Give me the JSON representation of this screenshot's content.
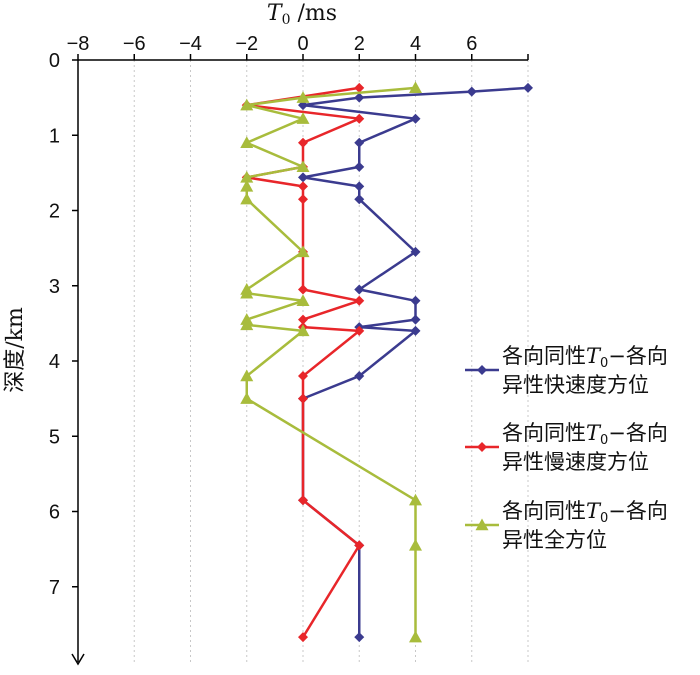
{
  "chart_data": {
    "type": "line",
    "title": "",
    "xlabel_var": "T",
    "xlabel_sub": "0",
    "xlabel_unit": " /ms",
    "ylabel": "深度/km",
    "x_axis_position": "top",
    "y_inverted": true,
    "xlim": [
      -8,
      8
    ],
    "ylim": [
      0,
      8
    ],
    "xticks": [
      -8,
      -6,
      -4,
      -2,
      0,
      2,
      4,
      6
    ],
    "xtick_labels": [
      "−8",
      "−6",
      "−4",
      "−2",
      "0",
      "2",
      "4",
      "6"
    ],
    "yticks": [
      0,
      1,
      2,
      3,
      4,
      5,
      6,
      7
    ],
    "ytick_labels": [
      "0",
      "1",
      "2",
      "3",
      "4",
      "5",
      "6",
      "7"
    ],
    "grid": "vertical dotted",
    "legend_position": "right",
    "series": [
      {
        "name": "各向同性T0−各向异性快速度方位",
        "legend_line1_pre": "各向同性",
        "legend_line1_var": "T",
        "legend_line1_sub": "0",
        "legend_line1_post": "−各向",
        "legend_line2": "异性快速度方位",
        "color": "#3b3b8f",
        "marker": "diamond",
        "points": [
          [
            8.0,
            0.37
          ],
          [
            6.0,
            0.42
          ],
          [
            2.0,
            0.5
          ],
          [
            0.0,
            0.6
          ],
          [
            4.0,
            0.78
          ],
          [
            2.0,
            1.1
          ],
          [
            2.0,
            1.42
          ],
          [
            0.0,
            1.56
          ],
          [
            2.0,
            1.68
          ],
          [
            2.0,
            1.85
          ],
          [
            4.0,
            2.55
          ],
          [
            2.0,
            3.05
          ],
          [
            4.0,
            3.2
          ],
          [
            4.0,
            3.45
          ],
          [
            2.0,
            3.55
          ],
          [
            4.0,
            3.6
          ],
          [
            2.0,
            4.2
          ],
          [
            0.0,
            4.5
          ],
          [
            0.0,
            5.85
          ],
          [
            2.0,
            6.45
          ],
          [
            2.0,
            7.67
          ]
        ]
      },
      {
        "name": "各向同性T0−各向异性慢速度方位",
        "legend_line1_pre": "各向同性",
        "legend_line1_var": "T",
        "legend_line1_sub": "0",
        "legend_line1_post": "−各向",
        "legend_line2": "异性慢速度方位",
        "color": "#e8262a",
        "marker": "diamond",
        "points": [
          [
            2.0,
            0.37
          ],
          [
            -2.0,
            0.6
          ],
          [
            2.0,
            0.78
          ],
          [
            0.0,
            1.1
          ],
          [
            0.0,
            1.42
          ],
          [
            -2.0,
            1.56
          ],
          [
            0.0,
            1.68
          ],
          [
            0.0,
            1.85
          ],
          [
            0.0,
            2.55
          ],
          [
            0.0,
            3.05
          ],
          [
            2.0,
            3.2
          ],
          [
            0.0,
            3.45
          ],
          [
            0.0,
            3.55
          ],
          [
            2.0,
            3.6
          ],
          [
            0.0,
            4.2
          ],
          [
            0.0,
            4.5
          ],
          [
            0.0,
            5.85
          ],
          [
            2.0,
            6.45
          ],
          [
            0.0,
            7.67
          ]
        ]
      },
      {
        "name": "各向同性T0−各向异性全方位",
        "legend_line1_pre": "各向同性",
        "legend_line1_var": "T",
        "legend_line1_sub": "0",
        "legend_line1_post": "−各向",
        "legend_line2": "异性全方位",
        "color": "#a8bc3c",
        "marker": "triangle",
        "points": [
          [
            4.0,
            0.37
          ],
          [
            0.0,
            0.5
          ],
          [
            -2.0,
            0.6
          ],
          [
            0.0,
            0.78
          ],
          [
            -2.0,
            1.1
          ],
          [
            0.0,
            1.42
          ],
          [
            -2.0,
            1.56
          ],
          [
            -2.0,
            1.68
          ],
          [
            -2.0,
            1.85
          ],
          [
            0.0,
            2.55
          ],
          [
            -2.0,
            3.05
          ],
          [
            -2.0,
            3.1
          ],
          [
            0.0,
            3.2
          ],
          [
            -2.0,
            3.45
          ],
          [
            -2.0,
            3.52
          ],
          [
            0.0,
            3.6
          ],
          [
            -2.0,
            4.2
          ],
          [
            -2.0,
            4.5
          ],
          [
            4.0,
            5.85
          ],
          [
            4.0,
            6.45
          ],
          [
            4.0,
            7.67
          ]
        ]
      }
    ]
  }
}
